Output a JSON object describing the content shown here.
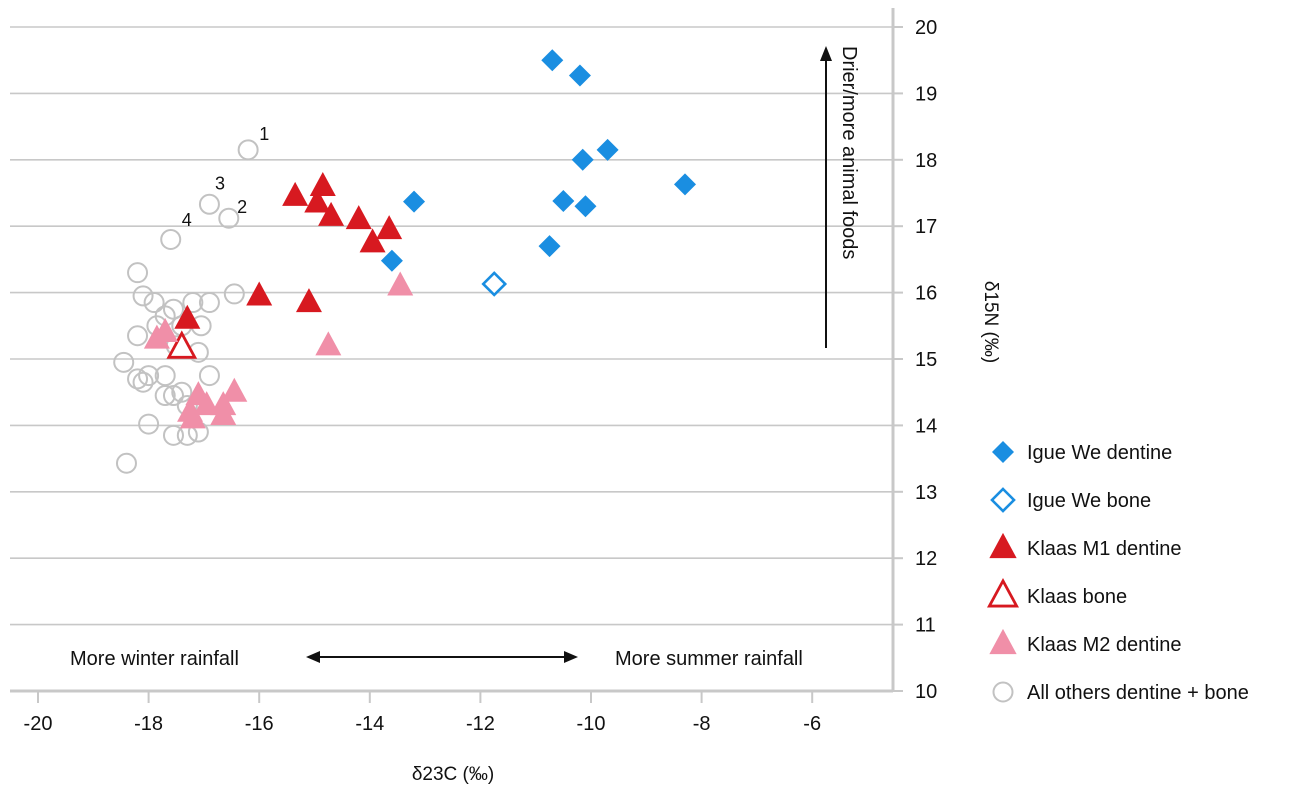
{
  "chart_data": {
    "type": "scatter",
    "xlabel": "δ23C (‰)",
    "ylabel": "δ15N (‰)",
    "xlim": [
      -20.5,
      -5
    ],
    "ylim": [
      10,
      20
    ],
    "x_ticks": [
      "-20",
      "-18",
      "-16",
      "-14",
      "-12",
      "-10",
      "-8",
      "-6"
    ],
    "y_ticks": [
      "10",
      "11",
      "12",
      "13",
      "14",
      "15",
      "16",
      "17",
      "18",
      "19",
      "20"
    ],
    "grid": "horizontal",
    "legend_position": "right",
    "annotations": {
      "winter": "More winter rainfall",
      "summer": "More summer rainfall",
      "vertical": "Drier/more animal foods"
    },
    "point_labels": [
      {
        "text": "1",
        "x": -16.0,
        "y": 18.3
      },
      {
        "text": "2",
        "x": -16.4,
        "y": 17.2
      },
      {
        "text": "3",
        "x": -16.8,
        "y": 17.55
      },
      {
        "text": "4",
        "x": -17.4,
        "y": 17.0
      }
    ],
    "series": [
      {
        "name": "Igue We dentine",
        "marker": "diamond-filled",
        "color": "#1a8ee1",
        "points": [
          [
            -10.7,
            19.5
          ],
          [
            -10.2,
            19.27
          ],
          [
            -10.15,
            18.0
          ],
          [
            -9.7,
            18.15
          ],
          [
            -8.3,
            17.63
          ],
          [
            -10.5,
            17.38
          ],
          [
            -10.1,
            17.3
          ],
          [
            -13.2,
            17.37
          ],
          [
            -10.75,
            16.7
          ],
          [
            -13.6,
            16.48
          ]
        ]
      },
      {
        "name": "Igue We bone",
        "marker": "diamond-open",
        "color": "#1a8ee1",
        "points": [
          [
            -11.75,
            16.13
          ]
        ]
      },
      {
        "name": "Klaas M1 dentine",
        "marker": "triangle-filled",
        "color": "#d71920",
        "points": [
          [
            -15.35,
            17.45
          ],
          [
            -14.85,
            17.6
          ],
          [
            -14.95,
            17.35
          ],
          [
            -14.7,
            17.15
          ],
          [
            -14.2,
            17.1
          ],
          [
            -13.65,
            16.95
          ],
          [
            -13.95,
            16.75
          ],
          [
            -16.0,
            15.95
          ],
          [
            -15.1,
            15.85
          ],
          [
            -17.3,
            15.6
          ]
        ]
      },
      {
        "name": "Klaas bone",
        "marker": "triangle-open",
        "color": "#d71920",
        "points": [
          [
            -17.4,
            15.17
          ]
        ]
      },
      {
        "name": "Klaas M2 dentine",
        "marker": "triangle-filled",
        "color": "#f08fa8",
        "points": [
          [
            -13.45,
            16.1
          ],
          [
            -14.75,
            15.2
          ],
          [
            -17.7,
            15.4
          ],
          [
            -17.85,
            15.3
          ],
          [
            -17.1,
            14.45
          ],
          [
            -17.25,
            14.2
          ],
          [
            -16.95,
            14.3
          ],
          [
            -16.65,
            14.3
          ],
          [
            -16.45,
            14.5
          ],
          [
            -16.65,
            14.15
          ],
          [
            -17.2,
            14.1
          ]
        ]
      },
      {
        "name": "All others dentine + bone",
        "marker": "circle-open",
        "color": "#c2c2c2",
        "points": [
          [
            -16.2,
            18.15
          ],
          [
            -16.9,
            17.33
          ],
          [
            -16.55,
            17.12
          ],
          [
            -17.6,
            16.8
          ],
          [
            -16.45,
            15.98
          ],
          [
            -18.2,
            16.3
          ],
          [
            -18.1,
            15.95
          ],
          [
            -17.9,
            15.85
          ],
          [
            -17.55,
            15.75
          ],
          [
            -17.2,
            15.85
          ],
          [
            -17.7,
            15.65
          ],
          [
            -17.4,
            15.5
          ],
          [
            -17.05,
            15.5
          ],
          [
            -17.85,
            15.5
          ],
          [
            -18.2,
            15.35
          ],
          [
            -17.5,
            15.2
          ],
          [
            -17.1,
            15.1
          ],
          [
            -16.9,
            14.75
          ],
          [
            -16.9,
            15.85
          ],
          [
            -18.45,
            14.95
          ],
          [
            -18.2,
            14.7
          ],
          [
            -18.0,
            14.75
          ],
          [
            -17.7,
            14.75
          ],
          [
            -18.1,
            14.65
          ],
          [
            -17.7,
            14.45
          ],
          [
            -17.55,
            14.45
          ],
          [
            -17.4,
            14.5
          ],
          [
            -17.3,
            14.3
          ],
          [
            -18.0,
            14.02
          ],
          [
            -17.55,
            13.85
          ],
          [
            -17.3,
            13.85
          ],
          [
            -17.1,
            13.9
          ],
          [
            -18.4,
            13.43
          ]
        ]
      }
    ]
  }
}
